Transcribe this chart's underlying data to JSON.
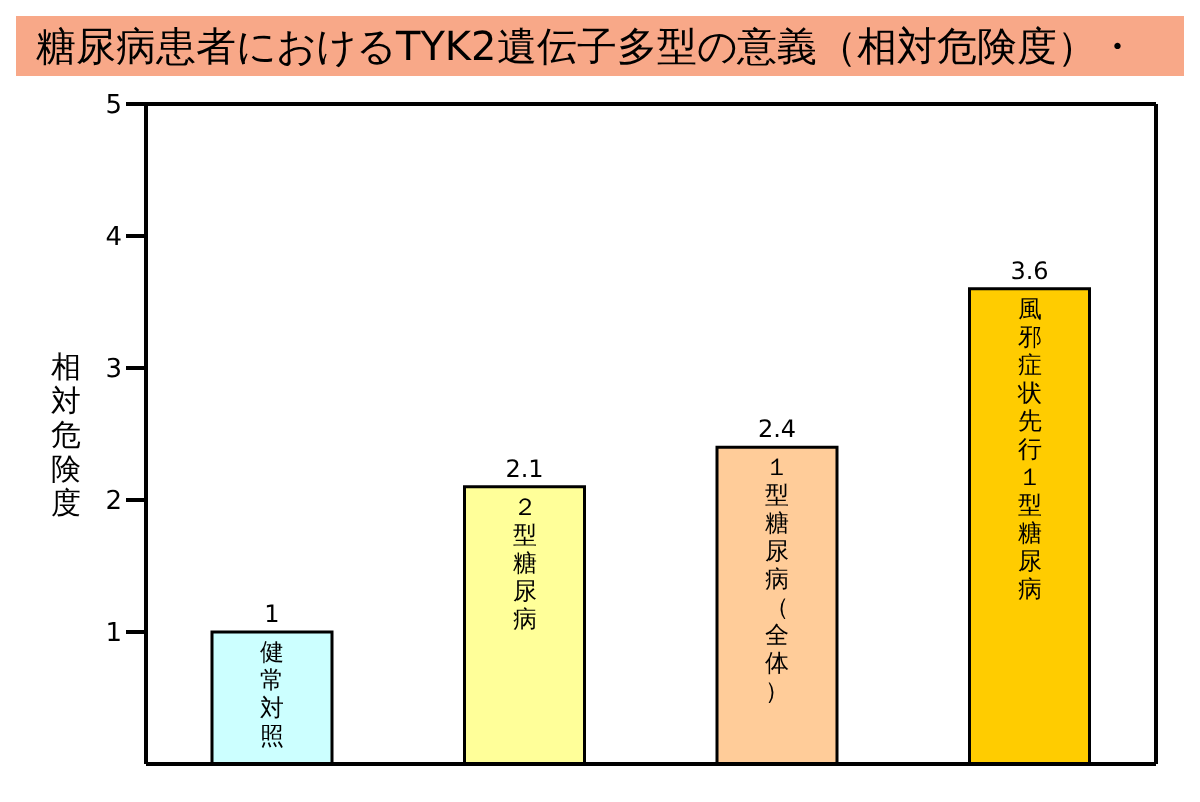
{
  "chart_data": {
    "type": "bar",
    "title": "糖尿病患者におけるTYK2遺伝子多型の意義（相対危険度）・",
    "ylabel": "相対危険度",
    "categories": [
      "健常対照",
      "２型糖尿病",
      "１型糖尿病（全体）",
      "風邪症状先行１型糖尿病"
    ],
    "values": [
      1,
      2.1,
      2.4,
      3.6
    ],
    "colors": [
      "#ccffff",
      "#ffff99",
      "#ffcc99",
      "#ffcc00"
    ],
    "ylim": [
      0,
      5
    ],
    "yticks": [
      1,
      2,
      3,
      4,
      5
    ],
    "data_labels": true
  }
}
